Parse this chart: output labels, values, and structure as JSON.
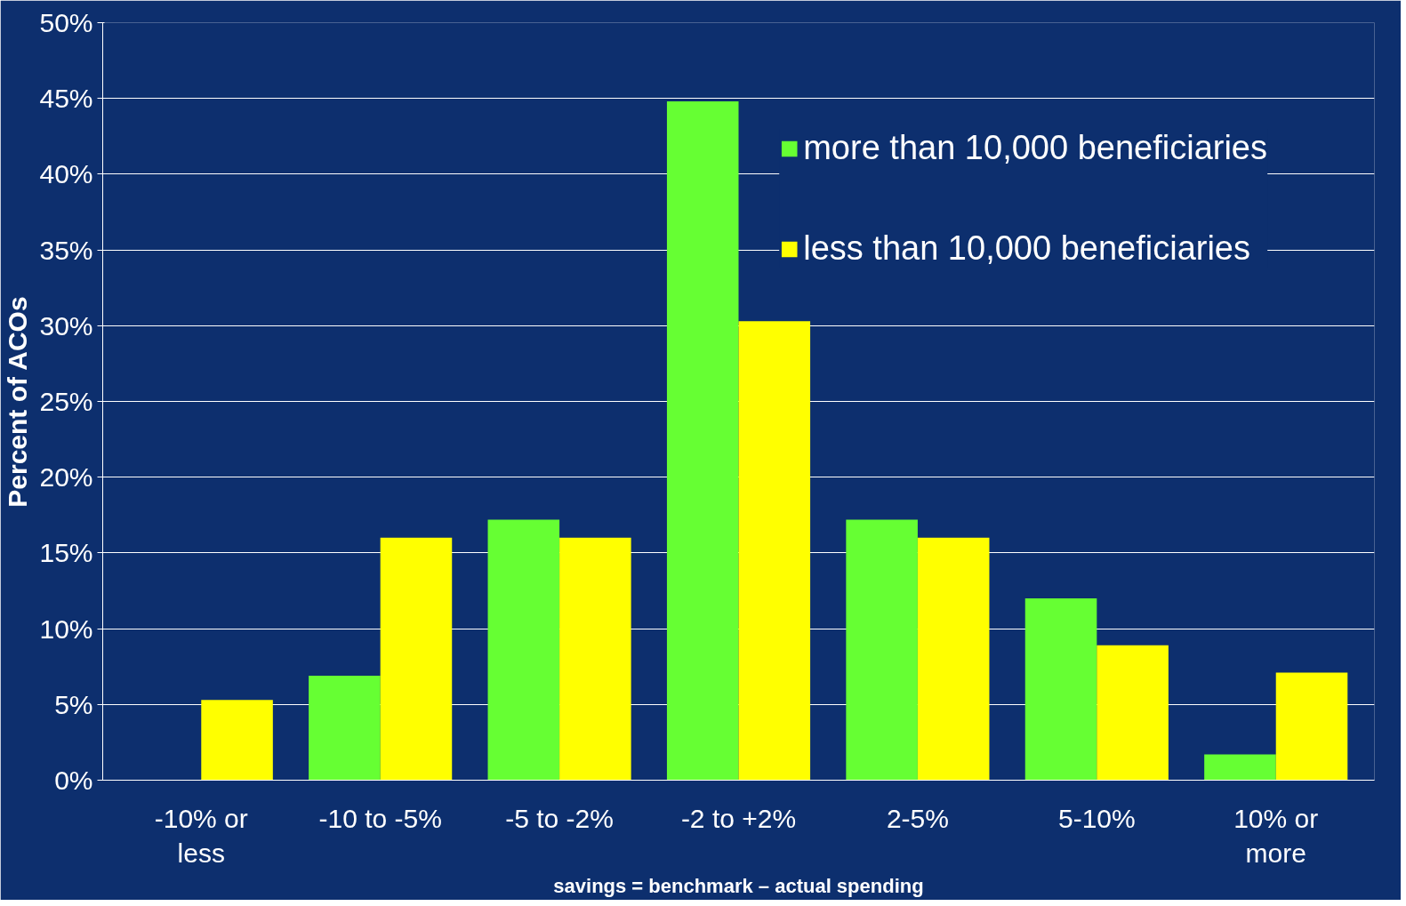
{
  "chart_data": {
    "type": "bar",
    "xlabel": "savings = benchmark – actual spending",
    "ylabel": "Percent of ACOs",
    "categories": [
      "-10% or less",
      "-10 to -5%",
      "-5 to -2%",
      "-2 to +2%",
      "2-5%",
      "5-10%",
      "10% or more"
    ],
    "series": [
      {
        "name": "more than 10,000 beneficiaries",
        "color": "#66ff33",
        "values": [
          0,
          6.9,
          17.2,
          44.8,
          17.2,
          12.0,
          1.7
        ]
      },
      {
        "name": "less than 10,000 beneficiaries",
        "color": "#ffff00",
        "values": [
          5.3,
          16.0,
          16.0,
          30.3,
          16.0,
          8.9,
          7.1
        ]
      }
    ],
    "ylim": [
      0,
      50
    ],
    "yticks": [
      {
        "value": 0,
        "label": "0%"
      },
      {
        "value": 5,
        "label": "5%"
      },
      {
        "value": 10,
        "label": "10%"
      },
      {
        "value": 15,
        "label": "15%"
      },
      {
        "value": 20,
        "label": "20%"
      },
      {
        "value": 25,
        "label": "25%"
      },
      {
        "value": 30,
        "label": "30%"
      },
      {
        "value": 35,
        "label": "35%"
      },
      {
        "value": 40,
        "label": "40%"
      },
      {
        "value": 45,
        "label": "45%"
      },
      {
        "value": 50,
        "label": "50%"
      }
    ],
    "grid": "y",
    "legend": "top right"
  }
}
